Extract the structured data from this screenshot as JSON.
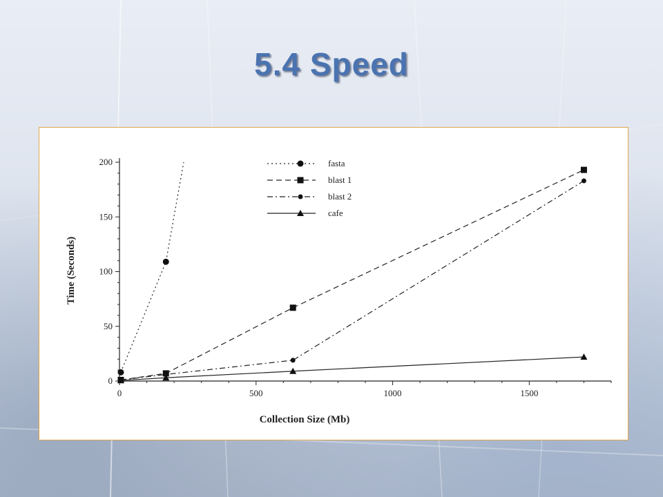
{
  "slide": {
    "title": "5.4 Speed"
  },
  "chart_data": {
    "type": "line",
    "xlabel": "Collection Size (Mb)",
    "ylabel": "Time (Seconds)",
    "xlim": [
      0,
      1800
    ],
    "ylim": [
      0,
      200
    ],
    "xticks": [
      0,
      500,
      1000,
      1500
    ],
    "yticks": [
      0,
      50,
      100,
      150,
      200
    ],
    "legend_position": "top-center",
    "grid": false,
    "series": [
      {
        "name": "fasta",
        "marker": "circle",
        "dash": "dotted",
        "points": [
          [
            5,
            8
          ],
          [
            170,
            109
          ]
        ],
        "extension": [
          235,
          200
        ]
      },
      {
        "name": "blast 1",
        "marker": "square",
        "dash": "dashed",
        "points": [
          [
            5,
            1
          ],
          [
            170,
            7
          ],
          [
            635,
            67
          ],
          [
            1700,
            193
          ]
        ]
      },
      {
        "name": "blast 2",
        "marker": "diamond",
        "dash": "dashdot",
        "points": [
          [
            5,
            1
          ],
          [
            170,
            6
          ],
          [
            635,
            19
          ],
          [
            1700,
            183
          ]
        ]
      },
      {
        "name": "cafe",
        "marker": "triangle",
        "dash": "solid",
        "points": [
          [
            5,
            0.5
          ],
          [
            170,
            3
          ],
          [
            635,
            9
          ],
          [
            1700,
            22
          ]
        ]
      }
    ]
  }
}
